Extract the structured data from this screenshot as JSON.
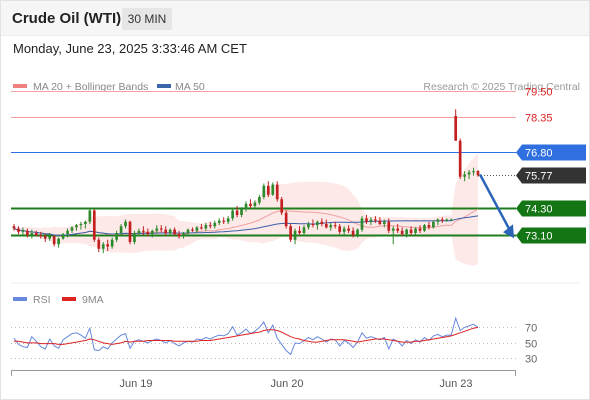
{
  "header": {
    "title": "Crude Oil (WTI)",
    "timeframe": "30 MIN"
  },
  "datetime": "Monday, June 23, 2025 3:33:46 AM CET",
  "legend": {
    "items": [
      {
        "label": "MA 20 + Bollinger Bands",
        "color": "#f08080"
      },
      {
        "label": "MA 50",
        "color": "#3a66a8"
      }
    ],
    "credit": "Research © 2025 Trading Central"
  },
  "rsi_legend": {
    "items": [
      {
        "label": "RSI",
        "color": "#6688dd"
      },
      {
        "label": "9MA",
        "color": "#dd2222"
      }
    ]
  },
  "chart_data": [
    {
      "type": "candlestick",
      "title": "Crude Oil (WTI)",
      "timeframe": "30 MIN",
      "ylim": [
        72.0,
        80.0
      ],
      "x_ticks": [
        "Jun 19",
        "Jun 20",
        "Jun 23"
      ],
      "current_price": "75.77",
      "levels": [
        {
          "value": 79.5,
          "label": "79.50",
          "kind": "resistance-2",
          "color": "#f08080"
        },
        {
          "value": 78.35,
          "label": "78.35",
          "kind": "resistance-1",
          "color": "#f08080"
        },
        {
          "value": 76.8,
          "label": "76.80",
          "kind": "pivot",
          "color": "#2f6fe0"
        },
        {
          "value": 75.77,
          "label": "75.77",
          "kind": "last",
          "color": "#333333"
        },
        {
          "value": 74.3,
          "label": "74.30",
          "kind": "support-1",
          "color": "#1a7a1a"
        },
        {
          "value": 73.1,
          "label": "73.10",
          "kind": "support-2",
          "color": "#1a7a1a"
        }
      ],
      "forecast": {
        "from": 75.8,
        "to": 73.1,
        "direction": "down"
      },
      "ohlc": [
        [
          73.5,
          73.6,
          73.3,
          73.4
        ],
        [
          73.4,
          73.5,
          73.15,
          73.25
        ],
        [
          73.25,
          73.45,
          73.1,
          73.3
        ],
        [
          73.3,
          73.4,
          73.0,
          73.1
        ],
        [
          73.1,
          73.35,
          72.95,
          73.2
        ],
        [
          73.2,
          73.3,
          73.05,
          73.1
        ],
        [
          73.1,
          73.25,
          72.95,
          73.05
        ],
        [
          73.05,
          73.15,
          72.8,
          72.95
        ],
        [
          72.95,
          73.2,
          72.85,
          73.05
        ],
        [
          73.05,
          73.1,
          72.6,
          72.7
        ],
        [
          72.7,
          73.0,
          72.55,
          72.95
        ],
        [
          72.95,
          73.2,
          72.9,
          73.15
        ],
        [
          73.15,
          73.4,
          73.0,
          73.3
        ],
        [
          73.3,
          73.5,
          73.2,
          73.45
        ],
        [
          73.45,
          73.6,
          73.3,
          73.55
        ],
        [
          73.55,
          73.7,
          73.35,
          73.6
        ],
        [
          73.6,
          73.75,
          73.4,
          73.7
        ],
        [
          73.7,
          74.3,
          73.6,
          74.2
        ],
        [
          74.2,
          74.25,
          72.8,
          72.9
        ],
        [
          72.9,
          73.0,
          72.35,
          72.5
        ],
        [
          72.5,
          72.8,
          72.3,
          72.7
        ],
        [
          72.7,
          72.9,
          72.4,
          72.6
        ],
        [
          72.6,
          73.0,
          72.5,
          72.9
        ],
        [
          72.9,
          73.3,
          72.8,
          73.2
        ],
        [
          73.2,
          73.6,
          73.1,
          73.5
        ],
        [
          73.5,
          73.8,
          73.4,
          73.7
        ],
        [
          73.7,
          73.75,
          72.7,
          72.8
        ],
        [
          72.8,
          73.3,
          72.7,
          73.2
        ],
        [
          73.2,
          73.4,
          73.05,
          73.3
        ],
        [
          73.3,
          73.5,
          73.1,
          73.25
        ],
        [
          73.25,
          73.4,
          73.05,
          73.15
        ],
        [
          73.15,
          73.35,
          73.0,
          73.3
        ],
        [
          73.3,
          73.55,
          73.2,
          73.4
        ],
        [
          73.4,
          73.55,
          73.25,
          73.35
        ],
        [
          73.35,
          73.5,
          73.1,
          73.2
        ],
        [
          73.2,
          73.4,
          73.1,
          73.35
        ],
        [
          73.35,
          73.45,
          73.1,
          73.15
        ],
        [
          73.15,
          73.3,
          72.95,
          73.05
        ],
        [
          73.05,
          73.25,
          72.95,
          73.2
        ],
        [
          73.2,
          73.4,
          73.1,
          73.35
        ],
        [
          73.35,
          73.45,
          73.25,
          73.3
        ],
        [
          73.3,
          73.5,
          73.2,
          73.45
        ],
        [
          73.45,
          73.6,
          73.35,
          73.4
        ],
        [
          73.4,
          73.65,
          73.3,
          73.55
        ],
        [
          73.55,
          73.7,
          73.4,
          73.5
        ],
        [
          73.5,
          73.75,
          73.4,
          73.65
        ],
        [
          73.65,
          73.85,
          73.55,
          73.75
        ],
        [
          73.75,
          73.9,
          73.6,
          73.7
        ],
        [
          73.7,
          73.95,
          73.6,
          73.85
        ],
        [
          73.85,
          74.3,
          73.75,
          74.2
        ],
        [
          74.2,
          74.4,
          73.9,
          74.0
        ],
        [
          74.0,
          74.35,
          73.9,
          74.25
        ],
        [
          74.25,
          74.6,
          74.15,
          74.5
        ],
        [
          74.5,
          74.7,
          74.3,
          74.4
        ],
        [
          74.4,
          74.65,
          74.3,
          74.55
        ],
        [
          74.55,
          74.9,
          74.45,
          74.8
        ],
        [
          74.8,
          75.4,
          74.7,
          75.3
        ],
        [
          75.3,
          75.5,
          74.8,
          74.9
        ],
        [
          74.9,
          75.45,
          74.85,
          75.35
        ],
        [
          75.35,
          75.5,
          74.6,
          74.7
        ],
        [
          74.7,
          74.8,
          74.0,
          74.1
        ],
        [
          74.1,
          74.2,
          73.4,
          73.5
        ],
        [
          73.5,
          73.6,
          72.8,
          72.9
        ],
        [
          72.9,
          73.4,
          72.7,
          73.3
        ],
        [
          73.3,
          73.5,
          73.1,
          73.2
        ],
        [
          73.2,
          73.55,
          73.1,
          73.45
        ],
        [
          73.45,
          73.7,
          73.35,
          73.6
        ],
        [
          73.6,
          73.8,
          73.45,
          73.55
        ],
        [
          73.55,
          73.75,
          73.35,
          73.7
        ],
        [
          73.7,
          73.85,
          73.5,
          73.6
        ],
        [
          73.6,
          73.8,
          73.4,
          73.45
        ],
        [
          73.45,
          73.65,
          73.3,
          73.55
        ],
        [
          73.55,
          73.7,
          73.4,
          73.5
        ],
        [
          73.5,
          73.6,
          73.15,
          73.25
        ],
        [
          73.25,
          73.5,
          73.1,
          73.4
        ],
        [
          73.4,
          73.55,
          73.2,
          73.3
        ],
        [
          73.3,
          73.45,
          73.0,
          73.1
        ],
        [
          73.1,
          73.4,
          73.0,
          73.35
        ],
        [
          73.35,
          73.95,
          73.25,
          73.85
        ],
        [
          73.85,
          74.0,
          73.6,
          73.7
        ],
        [
          73.7,
          73.9,
          73.55,
          73.8
        ],
        [
          73.8,
          73.95,
          73.65,
          73.75
        ],
        [
          73.75,
          73.9,
          73.55,
          73.6
        ],
        [
          73.6,
          73.8,
          73.45,
          73.7
        ],
        [
          73.7,
          73.85,
          73.2,
          73.3
        ],
        [
          73.3,
          73.5,
          72.7,
          73.4
        ],
        [
          73.4,
          73.6,
          73.2,
          73.3
        ],
        [
          73.3,
          73.45,
          73.05,
          73.15
        ],
        [
          73.15,
          73.4,
          73.0,
          73.35
        ],
        [
          73.35,
          73.5,
          73.1,
          73.2
        ],
        [
          73.2,
          73.45,
          73.1,
          73.4
        ],
        [
          73.4,
          73.55,
          73.2,
          73.3
        ],
        [
          73.3,
          73.6,
          73.25,
          73.55
        ],
        [
          73.55,
          73.7,
          73.35,
          73.45
        ],
        [
          73.45,
          73.75,
          73.4,
          73.7
        ],
        [
          73.7,
          73.85,
          73.55,
          73.8
        ],
        [
          73.8,
          73.9,
          73.65,
          73.75
        ],
        [
          73.75,
          73.85,
          73.7,
          73.8
        ],
        [
          73.8,
          73.85,
          73.75,
          73.8
        ],
        [
          78.4,
          78.7,
          77.3,
          77.3
        ],
        [
          77.3,
          77.4,
          75.6,
          75.7
        ],
        [
          75.7,
          75.95,
          75.5,
          75.8
        ],
        [
          75.8,
          76.0,
          75.6,
          75.9
        ],
        [
          75.9,
          76.1,
          75.75,
          75.95
        ],
        [
          75.95,
          76.0,
          75.7,
          75.77
        ]
      ],
      "series": [
        {
          "name": "MA 20"
        },
        {
          "name": "MA 50"
        },
        {
          "name": "Bollinger Bands"
        }
      ]
    },
    {
      "type": "line",
      "series": [
        {
          "name": "RSI",
          "values": [
            56,
            48,
            45,
            44,
            58,
            52,
            45,
            42,
            55,
            46,
            43,
            54,
            58,
            62,
            63,
            60,
            56,
            69,
            41,
            40,
            45,
            42,
            50,
            55,
            60,
            62,
            43,
            52,
            54,
            52,
            50,
            53,
            55,
            53,
            50,
            53,
            49,
            46,
            50,
            52,
            51,
            55,
            54,
            57,
            55,
            58,
            60,
            59,
            62,
            71,
            60,
            63,
            68,
            62,
            65,
            70,
            77,
            63,
            73,
            56,
            48,
            40,
            35,
            50,
            49,
            53,
            57,
            54,
            58,
            55,
            51,
            55,
            54,
            46,
            53,
            50,
            44,
            51,
            63,
            56,
            58,
            56,
            54,
            57,
            42,
            55,
            52,
            46,
            53,
            49,
            54,
            51,
            57,
            53,
            59,
            61,
            58,
            60,
            60,
            82,
            66,
            70,
            72,
            74,
            70
          ]
        },
        {
          "name": "9MA",
          "values": [
            52,
            52,
            51,
            50,
            50,
            50,
            49,
            49,
            49,
            49,
            48,
            48,
            49,
            50,
            51,
            52,
            53,
            55,
            54,
            52,
            50,
            49,
            48,
            49,
            50,
            52,
            51,
            52,
            52,
            52,
            53,
            53,
            53,
            53,
            53,
            53,
            52,
            52,
            52,
            52,
            52,
            52,
            53,
            53,
            53,
            54,
            55,
            56,
            57,
            58,
            59,
            60,
            61,
            62,
            63,
            64,
            66,
            67,
            67,
            66,
            64,
            61,
            58,
            56,
            55,
            53,
            52,
            51,
            51,
            52,
            53,
            54,
            54,
            54,
            54,
            53,
            52,
            51,
            52,
            53,
            54,
            55,
            55,
            55,
            54,
            53,
            52,
            51,
            51,
            51,
            52,
            52,
            53,
            54,
            55,
            56,
            57,
            58,
            59,
            61,
            63,
            65,
            67,
            69,
            70
          ]
        }
      ],
      "yticks": [
        "70",
        "50",
        "30"
      ],
      "ylim": [
        20,
        90
      ],
      "x_ticks": [
        "Jun 19",
        "Jun 20",
        "Jun 23"
      ]
    }
  ]
}
